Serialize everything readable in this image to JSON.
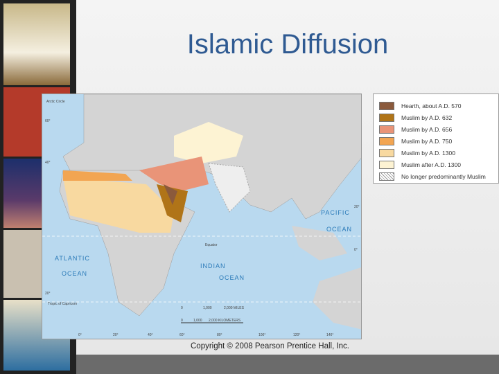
{
  "slide": {
    "title": "Islamic Diffusion",
    "copyright": "Copyright © 2008 Pearson Prentice Hall, Inc."
  },
  "legend": [
    {
      "label": "Hearth, about A.D. 570",
      "color": "#8b5a3c"
    },
    {
      "label": "Muslim by A.D. 632",
      "color": "#b07418"
    },
    {
      "label": "Muslim by A.D. 656",
      "color": "#e99478"
    },
    {
      "label": "Muslim by A.D. 750",
      "color": "#f2a552"
    },
    {
      "label": "Muslim by A.D. 1300",
      "color": "#f8d9a0"
    },
    {
      "label": "Muslim after A.D. 1300",
      "color": "#fdf3d3"
    },
    {
      "label": "No longer predominantly Muslim",
      "color": "hatched"
    }
  ],
  "map": {
    "labels": {
      "arctic": "Arctic Circle",
      "atlantic1": "ATLANTIC",
      "atlantic2": "OCEAN",
      "indian1": "INDIAN",
      "indian2": "OCEAN",
      "pacific1": "PACIFIC",
      "pacific2": "OCEAN",
      "equator": "Equator",
      "capricorn": "Tropic of Capricorn"
    },
    "scale": {
      "miles": [
        "0",
        "1,000",
        "2,000 MILES"
      ],
      "km": [
        "0",
        "1,000",
        "2,000 KILOMETERS"
      ]
    },
    "longitudes": [
      "0°",
      "20°",
      "40°",
      "60°",
      "80°",
      "100°",
      "120°",
      "140°"
    ],
    "latitudes": [
      "60°",
      "40°",
      "20°",
      "0°",
      "20°"
    ]
  }
}
